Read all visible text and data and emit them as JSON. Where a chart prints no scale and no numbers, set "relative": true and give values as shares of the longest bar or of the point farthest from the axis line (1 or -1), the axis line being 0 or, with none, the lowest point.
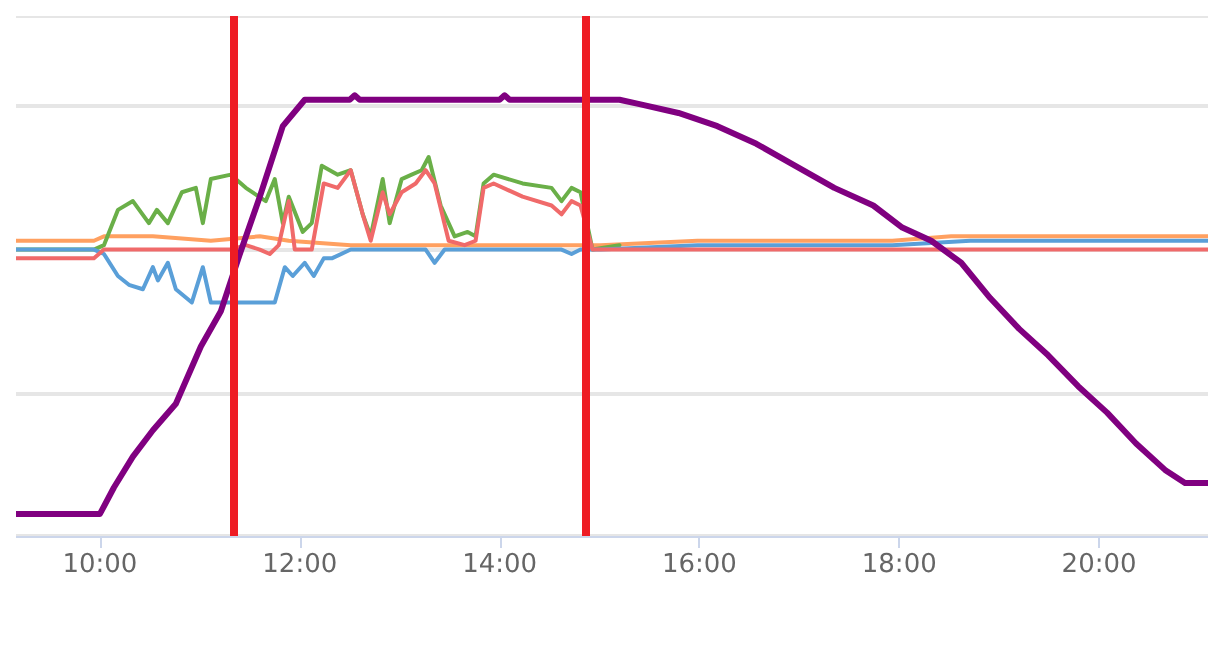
{
  "chart_data": {
    "type": "line",
    "relative": true,
    "grid": "y",
    "marker": "none",
    "line_style": "solid",
    "xlim": [
      9.16,
      21.09
    ],
    "xticks": [
      {
        "value": 10,
        "label": "10:00"
      },
      {
        "value": 12,
        "label": "12:00"
      },
      {
        "value": 14,
        "label": "14:00"
      },
      {
        "value": 16,
        "label": "16:00"
      },
      {
        "value": 18,
        "label": "18:00"
      },
      {
        "value": 20,
        "label": "20:00"
      }
    ],
    "ref_lines": [
      {
        "axis": "x",
        "value": 11.33,
        "color": "#ee1c24"
      },
      {
        "axis": "x",
        "value": 14.85,
        "color": "#ee1c24"
      }
    ],
    "series": [
      {
        "color": "#5a9fd8",
        "x": [
          9.16,
          9.94,
          10.04,
          10.18,
          10.29,
          10.43,
          10.53,
          10.58,
          10.68,
          10.76,
          10.92,
          11.03,
          11.11,
          11.6,
          11.7,
          11.75,
          11.85,
          11.93,
          12.05,
          12.14,
          12.24,
          12.32,
          12.51,
          13.26,
          13.35,
          13.45,
          14.62,
          14.72,
          14.81,
          15.01,
          15.98,
          16.96,
          17.93,
          18.71,
          19.3,
          20.08,
          21.09
        ],
        "values": [
          0.65,
          0.65,
          0.64,
          0.59,
          0.57,
          0.56,
          0.61,
          0.58,
          0.62,
          0.56,
          0.53,
          0.61,
          0.53,
          0.53,
          0.53,
          0.53,
          0.61,
          0.59,
          0.62,
          0.59,
          0.63,
          0.63,
          0.65,
          0.65,
          0.62,
          0.65,
          0.65,
          0.64,
          0.65,
          0.65,
          0.66,
          0.66,
          0.66,
          0.67,
          0.67,
          0.67,
          0.67
        ]
      },
      {
        "color": "#ffa060",
        "x": [
          9.16,
          9.94,
          10.04,
          10.53,
          11.11,
          11.6,
          11.89,
          12.51,
          13.45,
          14.52,
          15.01,
          15.98,
          16.96,
          17.93,
          18.52,
          18.71,
          19.3,
          20.08,
          21.09
        ],
        "values": [
          0.67,
          0.67,
          0.68,
          0.68,
          0.67,
          0.68,
          0.67,
          0.66,
          0.66,
          0.66,
          0.66,
          0.67,
          0.67,
          0.67,
          0.68,
          0.68,
          0.68,
          0.68,
          0.68
        ]
      },
      {
        "color": "#6aaf48",
        "x": [
          9.16,
          9.94,
          10.04,
          10.18,
          10.33,
          10.49,
          10.57,
          10.68,
          10.82,
          10.96,
          11.03,
          11.11,
          11.31,
          11.46,
          11.66,
          11.75,
          11.83,
          11.89,
          12.03,
          12.12,
          12.22,
          12.38,
          12.51,
          12.63,
          12.71,
          12.83,
          12.9,
          13.02,
          13.12,
          13.22,
          13.29,
          13.41,
          13.55,
          13.68,
          13.76,
          13.84,
          13.94,
          14.23,
          14.52,
          14.62,
          14.72,
          14.81,
          14.93,
          15.2
        ],
        "values": [
          0.65,
          0.65,
          0.66,
          0.74,
          0.76,
          0.71,
          0.74,
          0.71,
          0.78,
          0.79,
          0.71,
          0.81,
          0.82,
          0.79,
          0.76,
          0.81,
          0.71,
          0.77,
          0.69,
          0.71,
          0.84,
          0.82,
          0.83,
          0.73,
          0.68,
          0.81,
          0.71,
          0.81,
          0.82,
          0.83,
          0.86,
          0.75,
          0.68,
          0.69,
          0.68,
          0.8,
          0.82,
          0.8,
          0.79,
          0.76,
          0.79,
          0.78,
          0.65,
          0.66
        ]
      },
      {
        "color": "#f06a6a",
        "x": [
          9.16,
          9.94,
          10.04,
          11.01,
          11.11,
          11.31,
          11.46,
          11.6,
          11.7,
          11.79,
          11.89,
          11.95,
          12.05,
          12.12,
          12.24,
          12.38,
          12.51,
          12.63,
          12.71,
          12.83,
          12.9,
          13.02,
          13.16,
          13.26,
          13.35,
          13.49,
          13.65,
          13.76,
          13.84,
          13.94,
          14.23,
          14.52,
          14.62,
          14.72,
          14.81,
          14.93,
          21.09
        ],
        "values": [
          0.63,
          0.63,
          0.65,
          0.65,
          0.65,
          0.65,
          0.66,
          0.65,
          0.64,
          0.66,
          0.76,
          0.65,
          0.65,
          0.65,
          0.8,
          0.79,
          0.83,
          0.73,
          0.67,
          0.78,
          0.73,
          0.78,
          0.8,
          0.83,
          0.8,
          0.67,
          0.66,
          0.67,
          0.79,
          0.8,
          0.77,
          0.75,
          0.73,
          0.76,
          0.75,
          0.65,
          0.65
        ]
      },
      {
        "color": "#800080",
        "x": [
          9.16,
          10.0,
          10.14,
          10.33,
          10.53,
          10.76,
          11.01,
          11.21,
          11.4,
          11.6,
          11.83,
          12.05,
          12.5,
          12.55,
          12.6,
          14.0,
          14.05,
          14.1,
          15.2,
          15.4,
          15.79,
          16.18,
          16.57,
          16.96,
          17.35,
          17.74,
          18.03,
          18.32,
          18.62,
          18.91,
          19.2,
          19.49,
          19.79,
          20.08,
          20.37,
          20.66,
          20.86,
          21.09
        ],
        "values": [
          0.05,
          0.05,
          0.11,
          0.18,
          0.24,
          0.3,
          0.43,
          0.51,
          0.64,
          0.77,
          0.93,
          0.99,
          0.99,
          1.0,
          0.99,
          0.99,
          1.0,
          0.99,
          0.99,
          0.98,
          0.96,
          0.93,
          0.89,
          0.84,
          0.79,
          0.75,
          0.7,
          0.67,
          0.62,
          0.54,
          0.47,
          0.41,
          0.34,
          0.28,
          0.21,
          0.15,
          0.12,
          0.12
        ]
      }
    ]
  }
}
